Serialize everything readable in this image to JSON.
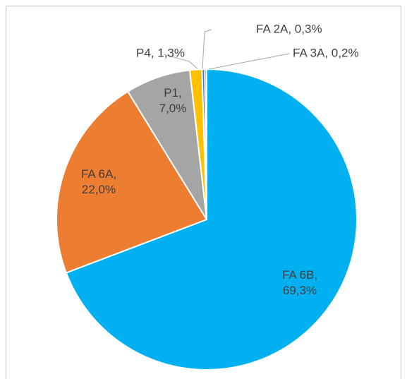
{
  "chart_data": {
    "type": "pie",
    "values": [
      69.3,
      22.0,
      7.0,
      1.3,
      0.3,
      0.2
    ],
    "value_labels": [
      "FA 6B, 69,3%",
      "FA 6A, 22,0%",
      "P1, 7,0%",
      "P4, 1,3%",
      "FA 2A, 0,3%",
      "FA 3A, 0,2%"
    ],
    "colors": [
      "#00b0f0",
      "#ed7d31",
      "#a5a5a5",
      "#ffc000",
      "#4472c4",
      "#70ad47"
    ]
  }
}
